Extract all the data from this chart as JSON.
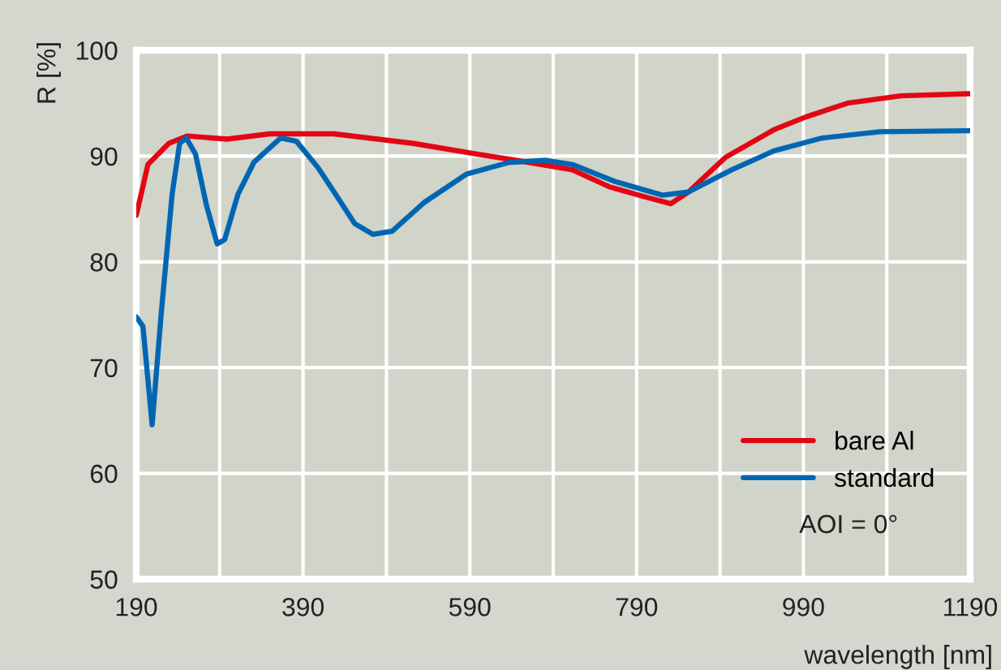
{
  "chart_data": {
    "type": "line",
    "xlabel": "wavelength [nm]",
    "ylabel": "R [%]",
    "xlim": [
      190,
      1190
    ],
    "ylim": [
      50,
      100
    ],
    "xticks": [
      190,
      {
        "value": 290,
        "label": null
      },
      390,
      {
        "value": 490,
        "label": null
      },
      590,
      {
        "value": 690,
        "label": null
      },
      790,
      {
        "value": 890,
        "label": null
      },
      990,
      {
        "value": 1090,
        "label": null
      },
      1190
    ],
    "yticks": [
      50,
      60,
      70,
      80,
      90,
      100
    ],
    "grid": true,
    "legend": "bottom right",
    "line_style": "solid",
    "marker": "none",
    "annotations": [
      "AOI = 0°"
    ],
    "series": [
      {
        "name": "bare Al",
        "color": "#e30613",
        "x": [
          190,
          204,
          229,
          251,
          299,
          350,
          427,
          522,
          598,
          661,
          713,
          757,
          802,
          831,
          852,
          897,
          955,
          993,
          1043,
          1107,
          1190
        ],
        "values": [
          84.4,
          89.2,
          91.2,
          91.9,
          91.6,
          92.1,
          92.1,
          91.2,
          90.2,
          89.4,
          88.7,
          87.1,
          86.1,
          85.5,
          86.6,
          89.9,
          92.5,
          93.7,
          95.0,
          95.7,
          95.9
        ]
      },
      {
        "name": "standard",
        "color": "#0066b3",
        "x": [
          190,
          198,
          209,
          220,
          233,
          242,
          250,
          261,
          274,
          287,
          296,
          312,
          331,
          363,
          382,
          408,
          433,
          452,
          474,
          497,
          535,
          586,
          637,
          681,
          713,
          764,
          821,
          852,
          904,
          955,
          1012,
          1082,
          1190
        ],
        "values": [
          74.8,
          73.9,
          64.6,
          75.2,
          86.4,
          91.2,
          91.7,
          90.2,
          85.4,
          81.7,
          82.1,
          86.4,
          89.4,
          91.7,
          91.4,
          88.9,
          85.9,
          83.6,
          82.6,
          82.9,
          85.6,
          88.3,
          89.4,
          89.6,
          89.2,
          87.6,
          86.3,
          86.6,
          88.7,
          90.5,
          91.7,
          92.3,
          92.4
        ]
      }
    ]
  }
}
